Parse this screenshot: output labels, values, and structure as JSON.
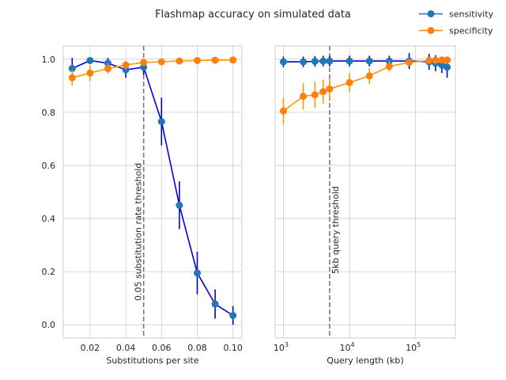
{
  "chart_data": {
    "title": "Flashmap accuracy on simulated data",
    "legend": {
      "placement": "top-right",
      "entries": [
        {
          "label": "sensitivity",
          "color": "#1f77b4"
        },
        {
          "label": "specificity",
          "color": "#ff7f0e"
        }
      ]
    },
    "panels": [
      {
        "type": "line",
        "xlabel": "Substitutions per site",
        "ylabel": "",
        "xscale": "linear",
        "xlim": [
          0.005,
          0.105
        ],
        "ylim": [
          -0.05,
          1.05
        ],
        "xticks": [
          {
            "value": 0.02,
            "label": "0.02"
          },
          {
            "value": 0.04,
            "label": "0.04"
          },
          {
            "value": 0.06,
            "label": "0.06"
          },
          {
            "value": 0.08,
            "label": "0.08"
          },
          {
            "value": 0.1,
            "label": "0.10"
          }
        ],
        "yticks": [
          {
            "value": 0.0,
            "label": "0.0"
          },
          {
            "value": 0.2,
            "label": "0.2"
          },
          {
            "value": 0.4,
            "label": "0.4"
          },
          {
            "value": 0.6,
            "label": "0.6"
          },
          {
            "value": 0.8,
            "label": "0.8"
          },
          {
            "value": 1.0,
            "label": "1.0"
          }
        ],
        "grid": true,
        "threshold": {
          "x": 0.05,
          "label": "0.05 substitution rate threshold"
        },
        "series": [
          {
            "name": "sensitivity",
            "marker_color": "#1f77b4",
            "line_color": "#0000dd",
            "x": [
              0.01,
              0.02,
              0.03,
              0.04,
              0.05,
              0.06,
              0.07,
              0.08,
              0.09,
              0.1
            ],
            "y": [
              0.965,
              0.995,
              0.985,
              0.96,
              0.97,
              0.765,
              0.45,
              0.195,
              0.078,
              0.035
            ],
            "err": [
              0.04,
              0.01,
              0.02,
              0.03,
              0.03,
              0.09,
              0.09,
              0.08,
              0.055,
              0.035
            ]
          },
          {
            "name": "specificity",
            "marker_color": "#ff7f0e",
            "line_color": "#ff9900",
            "x": [
              0.01,
              0.02,
              0.03,
              0.04,
              0.05,
              0.06,
              0.07,
              0.08,
              0.09,
              0.1
            ],
            "y": [
              0.93,
              0.948,
              0.965,
              0.978,
              0.988,
              0.99,
              0.993,
              0.995,
              0.996,
              0.997
            ],
            "err": [
              0.03,
              0.03,
              0.02,
              0.015,
              0.01,
              0.008,
              0.006,
              0.005,
              0.004,
              0.003
            ]
          }
        ]
      },
      {
        "type": "line",
        "xlabel": "Query length (kb)",
        "ylabel": "",
        "xscale": "log",
        "xlim": [
          750,
          400000
        ],
        "ylim": [
          -0.05,
          1.05
        ],
        "xticks": [
          {
            "value": 1000,
            "base": "10",
            "exp": "3"
          },
          {
            "value": 10000,
            "base": "10",
            "exp": "4"
          },
          {
            "value": 100000,
            "base": "10",
            "exp": "5"
          }
        ],
        "yticks": [
          {
            "value": 0.0,
            "label": ""
          },
          {
            "value": 0.2,
            "label": ""
          },
          {
            "value": 0.4,
            "label": ""
          },
          {
            "value": 0.6,
            "label": ""
          },
          {
            "value": 0.8,
            "label": ""
          },
          {
            "value": 1.0,
            "label": ""
          }
        ],
        "grid": true,
        "threshold": {
          "x": 5000,
          "label": "5kb query threshold"
        },
        "series": [
          {
            "name": "sensitivity",
            "marker_color": "#1f77b4",
            "line_color": "#0000dd",
            "x": [
              1000,
              2000,
              3000,
              4000,
              5000,
              10000,
              20000,
              40000,
              80000,
              160000,
              200000,
              250000,
              300000
            ],
            "y": [
              0.99,
              0.99,
              0.992,
              0.993,
              0.993,
              0.993,
              0.993,
              0.993,
              0.993,
              0.99,
              0.985,
              0.978,
              0.97
            ],
            "err": [
              0.02,
              0.02,
              0.02,
              0.02,
              0.02,
              0.02,
              0.02,
              0.02,
              0.03,
              0.03,
              0.03,
              0.03,
              0.04
            ]
          },
          {
            "name": "specificity",
            "marker_color": "#ff7f0e",
            "line_color": "#ff9900",
            "x": [
              1000,
              2000,
              3000,
              4000,
              5000,
              10000,
              20000,
              40000,
              80000,
              160000,
              200000,
              250000,
              300000
            ],
            "y": [
              0.805,
              0.86,
              0.866,
              0.878,
              0.888,
              0.912,
              0.937,
              0.973,
              0.988,
              0.995,
              0.996,
              0.997,
              0.997
            ],
            "err": [
              0.05,
              0.05,
              0.05,
              0.045,
              0.04,
              0.035,
              0.03,
              0.02,
              0.01,
              0.005,
              0.004,
              0.004,
              0.003
            ]
          }
        ]
      }
    ]
  }
}
